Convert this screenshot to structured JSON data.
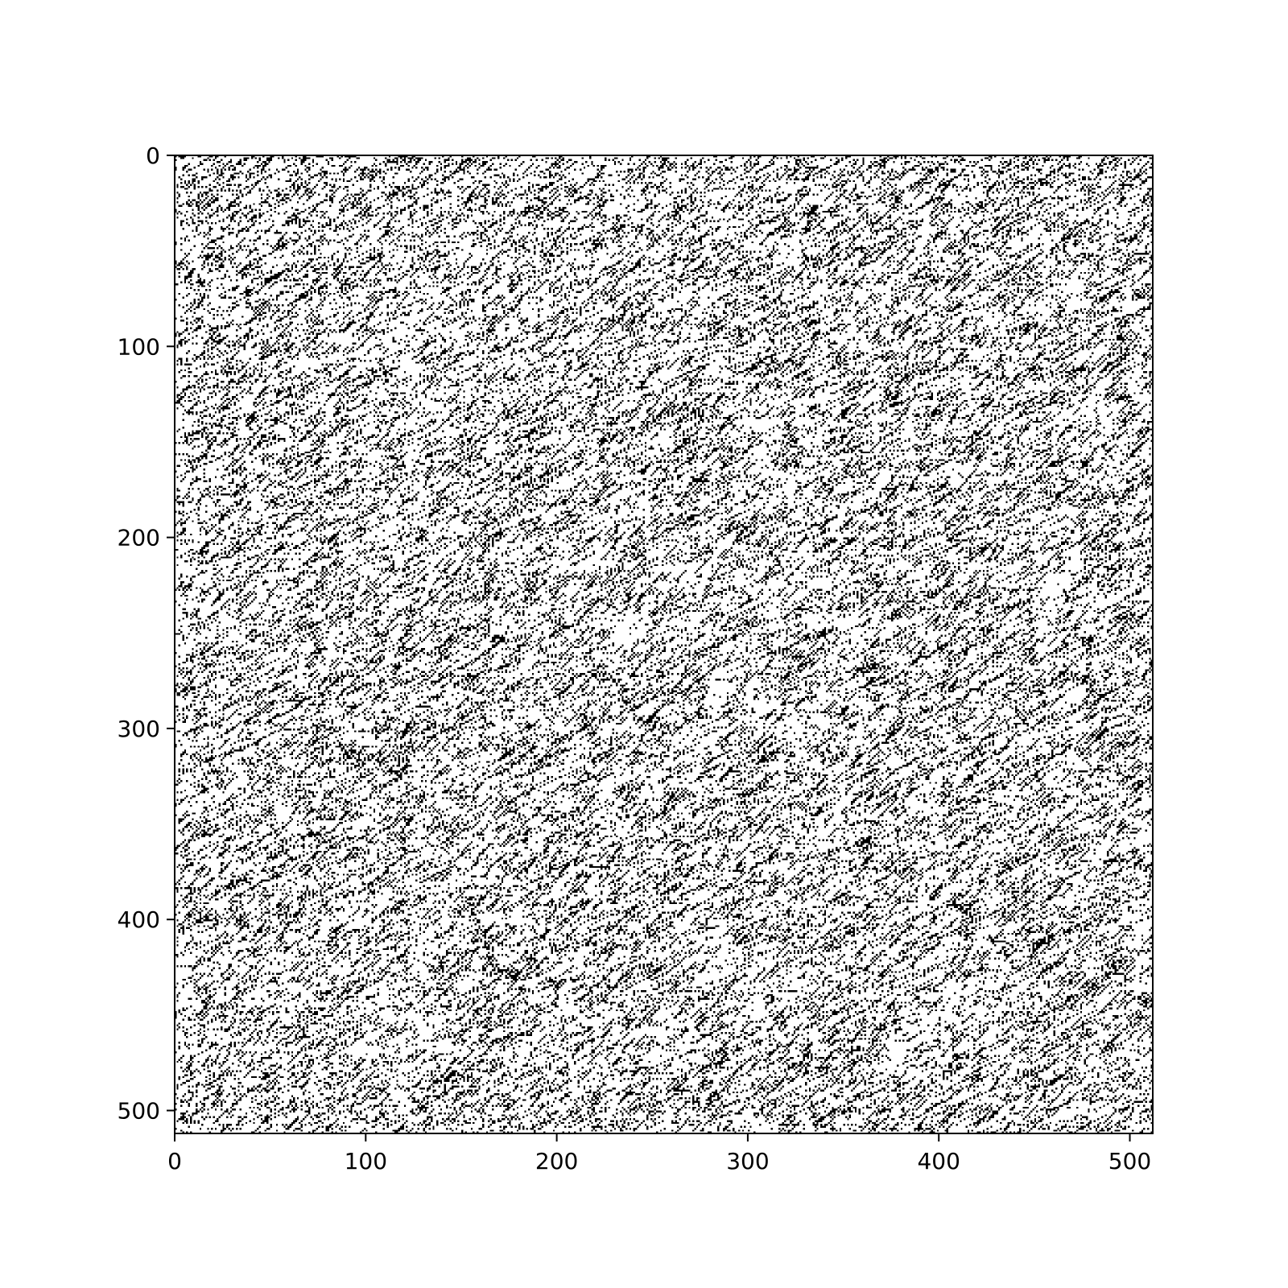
{
  "chart_data": {
    "type": "heatmap",
    "title": "",
    "xlabel": "",
    "ylabel": "",
    "xlim": [
      0,
      511
    ],
    "ylim": [
      511,
      0
    ],
    "y_axis_inverted": true,
    "grid": false,
    "legend": "none",
    "colormap": "binary",
    "colors": {
      "background": "#ffffff",
      "pixel_on": "#000000",
      "axes": "#000000"
    },
    "matrix_shape": [
      512,
      512
    ],
    "approx_fill_fraction": 0.22,
    "pattern": "sparse binary pixels forming short diagonal streaks (lower-left to upper-right) across the whole matrix",
    "x_ticks": [
      0,
      100,
      200,
      300,
      400,
      500
    ],
    "x_tick_labels": [
      "0",
      "100",
      "200",
      "300",
      "400",
      "500"
    ],
    "y_ticks": [
      0,
      100,
      200,
      300,
      400,
      500
    ],
    "y_tick_labels": [
      "0",
      "100",
      "200",
      "300",
      "400",
      "500"
    ]
  }
}
